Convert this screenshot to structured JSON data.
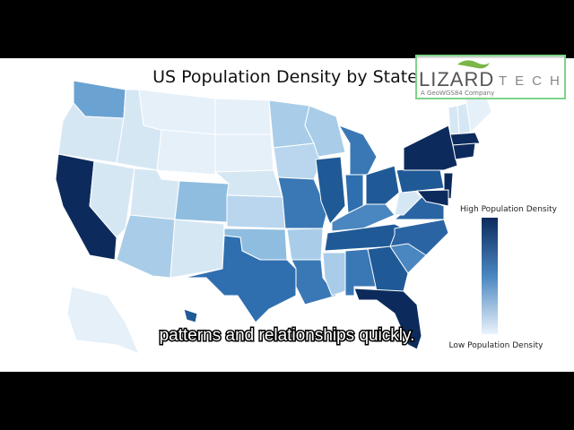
{
  "title": "US Population Density by State",
  "legend": {
    "high": "High Population Density",
    "low": "Low Population Density"
  },
  "logo": {
    "name": "LIZARD",
    "suffix": "TECH",
    "tagline": "A GeoWGS84 Company"
  },
  "caption": "patterns and relationships quickly."
}
